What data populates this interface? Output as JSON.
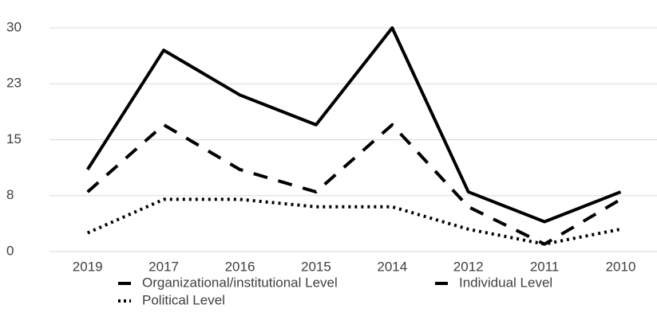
{
  "chart_data": {
    "type": "line",
    "categories": [
      "2019",
      "2017",
      "2016",
      "2015",
      "2014",
      "2012",
      "2011",
      "2010"
    ],
    "series": [
      {
        "name": "Organizational/institutional Level",
        "color": "#000000",
        "dash": "solid",
        "values": [
          11,
          27,
          21,
          17,
          30,
          8,
          4,
          8
        ]
      },
      {
        "name": "Individual Level",
        "color": "#000000",
        "dash": "dashed",
        "values": [
          8,
          17,
          11,
          8,
          17,
          6,
          1,
          7
        ]
      },
      {
        "name": "Political Level",
        "color": "#000000",
        "dash": "dotted",
        "values": [
          2.5,
          7,
          7,
          6,
          6,
          3,
          1,
          3
        ]
      }
    ],
    "ylim": [
      0,
      30
    ],
    "yticks": [
      0,
      {
        "value": 7.5,
        "label": "8"
      },
      15,
      {
        "value": 22.5,
        "label": "23"
      },
      30
    ],
    "grid": true,
    "legend": "bottom"
  }
}
